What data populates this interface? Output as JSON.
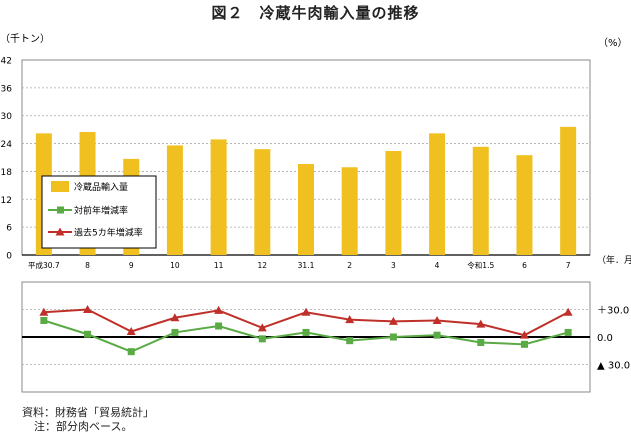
{
  "title": "図２　冷蔵牛肉輸入量の推移",
  "notes": {
    "source": "資料：財務省「貿易統計」",
    "remark": "注：部分肉ベース。"
  },
  "chart_data": [
    {
      "type": "bar",
      "unit_left": "（千トン）",
      "categories": [
        "平成30.7",
        "8",
        "9",
        "10",
        "11",
        "12",
        "31.1",
        "2",
        "3",
        "4",
        "令和1.5",
        "6",
        "7"
      ],
      "x_unit": "（年．月）",
      "ylim": [
        0,
        42
      ],
      "yticks": [
        "0",
        "6",
        "12",
        "18",
        "24",
        "30",
        "36",
        "42"
      ],
      "grid": true,
      "series": [
        {
          "name": "冷蔵品輸入量",
          "color": "#f0c020",
          "values": [
            26.2,
            26.5,
            20.7,
            23.6,
            24.9,
            22.8,
            19.6,
            18.9,
            22.4,
            26.2,
            23.3,
            21.5,
            27.6
          ]
        }
      ]
    },
    {
      "type": "line",
      "unit_right": "（%）",
      "categories": [
        "平成30.7",
        "8",
        "9",
        "10",
        "11",
        "12",
        "31.1",
        "2",
        "3",
        "4",
        "令和1.5",
        "6",
        "7"
      ],
      "ylim": [
        -60,
        60
      ],
      "yticks": [
        "＋30.0",
        "0.0",
        "▲ 30.0"
      ],
      "ytick_values": [
        30,
        0,
        -30
      ],
      "series": [
        {
          "name": "対前年増減率",
          "color": "#5aaa46",
          "values": [
            18,
            3,
            -16,
            5,
            12,
            -2,
            5,
            -4,
            0,
            2,
            -6,
            -8,
            5
          ]
        },
        {
          "name": "過去5カ年増減率",
          "color": "#c0302a",
          "values": [
            27,
            30,
            6,
            21,
            29,
            10,
            27,
            19,
            17,
            18,
            14,
            2,
            27
          ]
        }
      ]
    }
  ]
}
